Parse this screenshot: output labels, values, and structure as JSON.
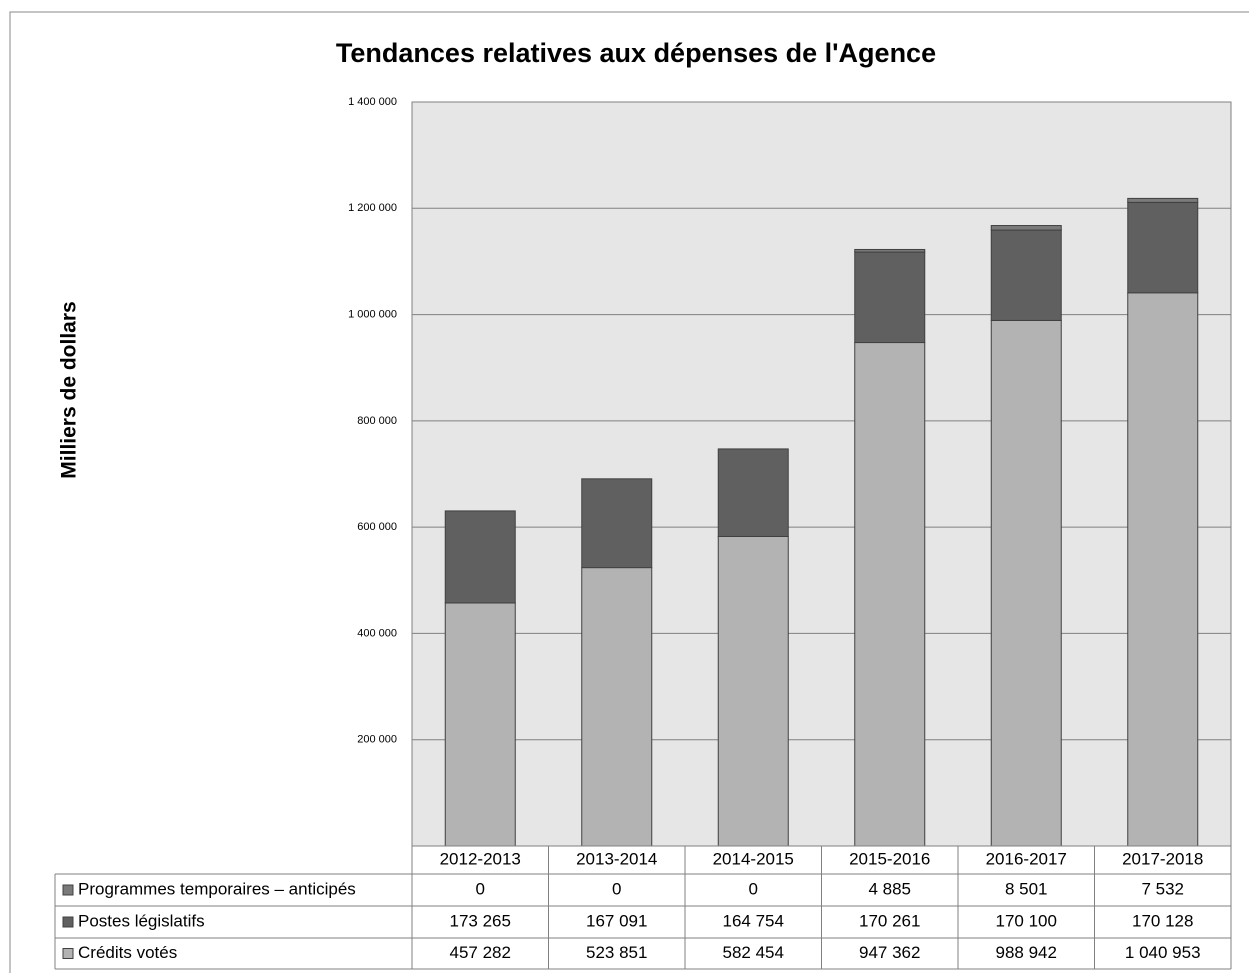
{
  "chart_data": {
    "type": "stacked_bar",
    "title": "Tendances relatives aux dépenses de l'Agence",
    "y_label": "Milliers de dollars",
    "categories": [
      "2012-2013",
      "2013-2014",
      "2014-2015",
      "2015-2016",
      "2016-2017",
      "2017-2018"
    ],
    "series": [
      {
        "name": "Crédits votés",
        "color": "#b3b3b3",
        "values": [
          457282,
          523851,
          582454,
          947362,
          988942,
          1040953
        ],
        "value_labels": [
          "457 282",
          "523 851",
          "582 454",
          "947 362",
          "988 942",
          "1 040 953"
        ]
      },
      {
        "name": "Postes législatifs",
        "color": "#606060",
        "values": [
          173265,
          167091,
          164754,
          170261,
          170100,
          170128
        ],
        "value_labels": [
          "173 265",
          "167 091",
          "164 754",
          "170 261",
          "170 100",
          "170 128"
        ]
      },
      {
        "name": "Programmes temporaires – anticipés",
        "color": "#7a7a7a",
        "values": [
          0,
          0,
          0,
          4885,
          8501,
          7532
        ],
        "value_labels": [
          "0",
          "0",
          "0",
          "4 885",
          "8 501",
          "7 532"
        ]
      }
    ],
    "ylim": [
      0,
      1400000
    ],
    "yticks": [
      {
        "value": 200000,
        "label": "200 000"
      },
      {
        "value": 400000,
        "label": "400 000"
      },
      {
        "value": 600000,
        "label": "600 000"
      },
      {
        "value": 800000,
        "label": "800 000"
      },
      {
        "value": 1000000,
        "label": "1 000 000"
      },
      {
        "value": 1200000,
        "label": "1 200 000"
      },
      {
        "value": 1400000,
        "label": "1 400 000"
      }
    ],
    "grid": true
  }
}
